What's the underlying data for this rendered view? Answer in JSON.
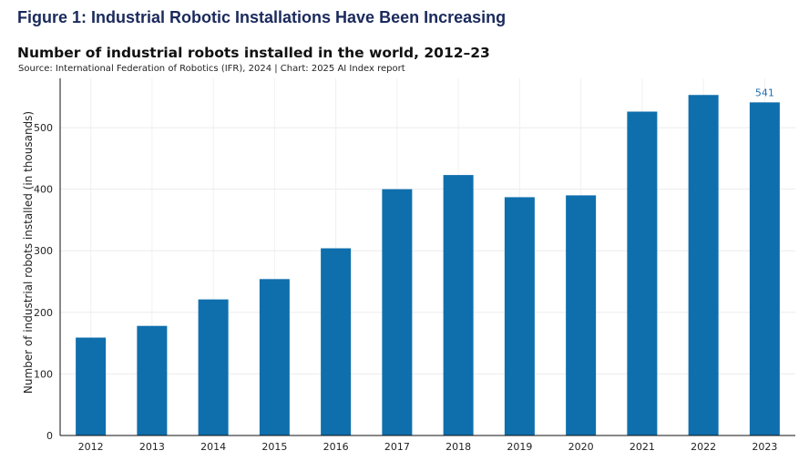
{
  "figure_heading": "Figure 1: Industrial Robotic Installations Have Been Increasing",
  "chart_data": {
    "type": "bar",
    "title": "Number of industrial robots installed in the world, 2012–23",
    "subtitle": "Source: International Federation of Robotics (IFR), 2024 | Chart: 2025 AI Index report",
    "xlabel": "",
    "ylabel": "Number of industrial robots installed (in thousands)",
    "categories": [
      "2012",
      "2013",
      "2014",
      "2015",
      "2016",
      "2017",
      "2018",
      "2019",
      "2020",
      "2021",
      "2022",
      "2023"
    ],
    "values": [
      159,
      178,
      221,
      254,
      304,
      400,
      423,
      387,
      390,
      526,
      553,
      541
    ],
    "ylim": [
      0,
      580
    ],
    "yticks": [
      0,
      100,
      200,
      300,
      400,
      500
    ],
    "data_labels": [
      {
        "category": "2023",
        "text": "541"
      }
    ],
    "bar_color": "#0f6fad",
    "label_color": "#1f6fb4",
    "grid": true,
    "legend": "none"
  }
}
